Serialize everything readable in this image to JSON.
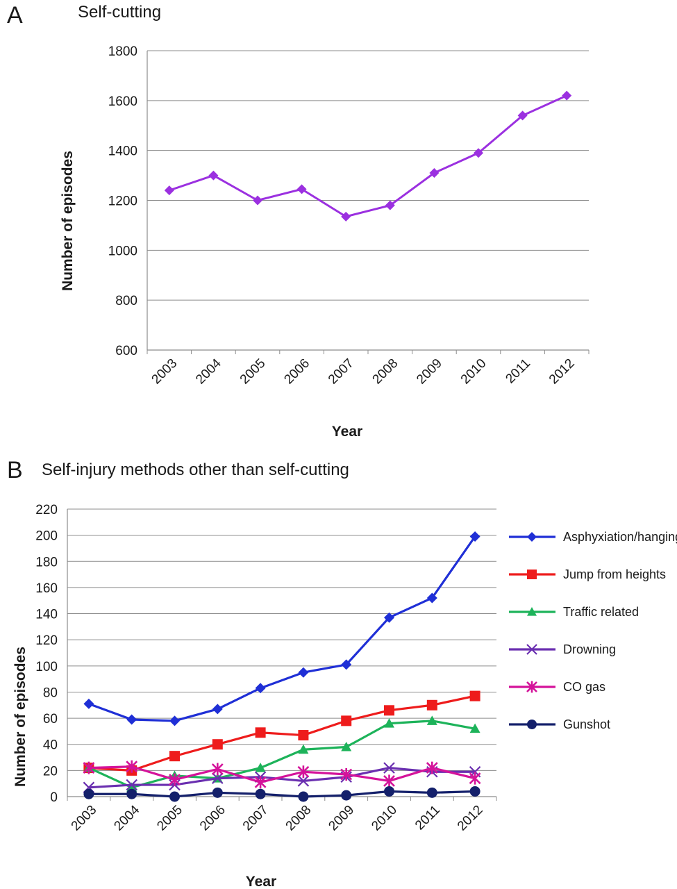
{
  "chart_data": [
    {
      "panel": "A",
      "type": "line",
      "title": "Self-cutting",
      "xlabel": "Year",
      "ylabel": "Number of episodes",
      "categories": [
        "2003",
        "2004",
        "2005",
        "2006",
        "2007",
        "2008",
        "2009",
        "2010",
        "2011",
        "2012"
      ],
      "ylim": [
        600,
        1800
      ],
      "yticks": [
        600,
        800,
        1000,
        1200,
        1400,
        1600,
        1800
      ],
      "grid": true,
      "legend": "none",
      "series": [
        {
          "color": "#9b30e0",
          "marker": "diamond",
          "values": [
            1240,
            1300,
            1200,
            1245,
            1135,
            1180,
            1310,
            1390,
            1540,
            1620
          ]
        }
      ]
    },
    {
      "panel": "B",
      "type": "line",
      "title": "Self-injury methods other than self-cutting",
      "xlabel": "Year",
      "ylabel": "Number of episodes",
      "categories": [
        "2003",
        "2004",
        "2005",
        "2006",
        "2007",
        "2008",
        "2009",
        "2010",
        "2011",
        "2012"
      ],
      "ylim": [
        0,
        220
      ],
      "yticks": [
        0,
        20,
        40,
        60,
        80,
        100,
        120,
        140,
        160,
        180,
        200,
        220
      ],
      "grid": true,
      "legend": "right",
      "series": [
        {
          "name": "Asphyxiation/hanging",
          "color": "#1f2fd6",
          "marker": "diamond",
          "values": [
            71,
            59,
            58,
            67,
            83,
            95,
            101,
            137,
            152,
            199
          ]
        },
        {
          "name": "Jump from heights",
          "color": "#ee1c1c",
          "marker": "square",
          "values": [
            22,
            20,
            31,
            40,
            49,
            47,
            58,
            66,
            70,
            77
          ]
        },
        {
          "name": "Traffic related",
          "color": "#1db35a",
          "marker": "triangle",
          "values": [
            22,
            7,
            16,
            14,
            22,
            36,
            38,
            56,
            58,
            52
          ]
        },
        {
          "name": "Drowning",
          "color": "#6a2fb0",
          "marker": "x",
          "values": [
            7,
            9,
            9,
            14,
            15,
            12,
            15,
            22,
            19,
            19
          ]
        },
        {
          "name": "CO gas",
          "color": "#d4139a",
          "marker": "star",
          "values": [
            22,
            23,
            13,
            21,
            11,
            19,
            17,
            12,
            22,
            14
          ]
        },
        {
          "name": "Gunshot",
          "color": "#14206b",
          "marker": "circle",
          "values": [
            2,
            2,
            0,
            3,
            2,
            0,
            1,
            4,
            3,
            4
          ]
        }
      ]
    }
  ]
}
